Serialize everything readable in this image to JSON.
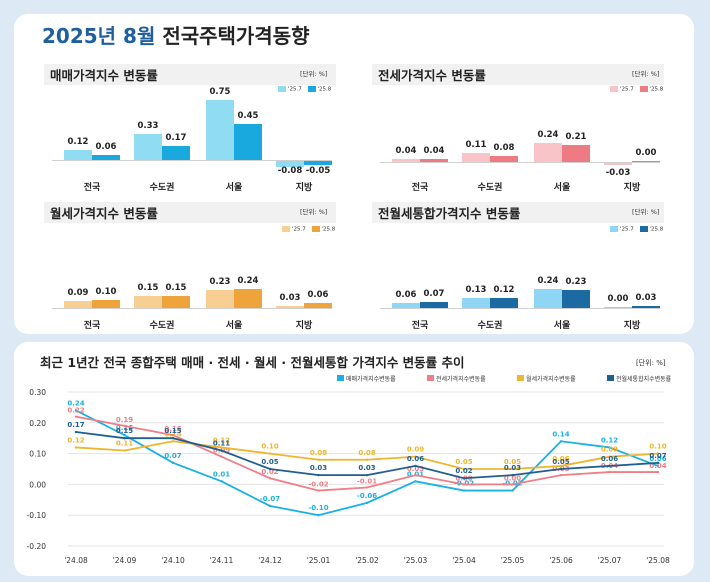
{
  "main_title": {
    "year_month": "2025년 8월",
    "rest": "전국주택가격동향"
  },
  "colors": {
    "sale": [
      "#8fdcf3",
      "#1aa9df"
    ],
    "jeonse": [
      "#f8c4c8",
      "#ee7a82"
    ],
    "monthly": [
      "#f8cf93",
      "#eea43a"
    ],
    "combined": [
      "#8fd6f5",
      "#1b6aa1"
    ],
    "line": [
      "#1ab0e5",
      "#ef7e86",
      "#efb52e",
      "#1f5f8f"
    ]
  },
  "chart_data": [
    {
      "type": "bar",
      "title": "매매가격지수 변동률",
      "unit": "[단위: %]",
      "legend": [
        "'25.7",
        "'25.8"
      ],
      "categories": [
        "전국",
        "수도권",
        "서울",
        "지방"
      ],
      "series": [
        {
          "name": "'25.7",
          "values": [
            0.12,
            0.33,
            0.75,
            -0.08
          ],
          "labels": [
            "0.12",
            "0.33",
            "0.75",
            "-0.08"
          ]
        },
        {
          "name": "'25.8",
          "values": [
            0.06,
            0.17,
            0.45,
            -0.05
          ],
          "labels": [
            "0.06",
            "0.17",
            "0.45",
            "-0.05"
          ]
        }
      ]
    },
    {
      "type": "bar",
      "title": "전세가격지수 변동률",
      "unit": "[단위: %]",
      "legend": [
        "'25.7",
        "'25.8"
      ],
      "categories": [
        "전국",
        "수도권",
        "서울",
        "지방"
      ],
      "series": [
        {
          "name": "'25.7",
          "values": [
            0.04,
            0.11,
            0.24,
            -0.03
          ],
          "labels": [
            "0.04",
            "0.11",
            "0.24",
            "-0.03"
          ]
        },
        {
          "name": "'25.8",
          "values": [
            0.04,
            0.08,
            0.21,
            0.0
          ],
          "labels": [
            "0.04",
            "0.08",
            "0.21",
            "0.00"
          ]
        }
      ]
    },
    {
      "type": "bar",
      "title": "월세가격지수 변동률",
      "unit": "[단위: %]",
      "legend": [
        "'25.7",
        "'25.8"
      ],
      "categories": [
        "전국",
        "수도권",
        "서울",
        "지방"
      ],
      "series": [
        {
          "name": "'25.7",
          "values": [
            0.09,
            0.15,
            0.23,
            0.03
          ],
          "labels": [
            "0.09",
            "0.15",
            "0.23",
            "0.03"
          ]
        },
        {
          "name": "'25.8",
          "values": [
            0.1,
            0.15,
            0.24,
            0.06
          ],
          "labels": [
            "0.10",
            "0.15",
            "0.24",
            "0.06"
          ]
        }
      ]
    },
    {
      "type": "bar",
      "title": "전월세통합가격지수 변동률",
      "unit": "[단위: %]",
      "legend": [
        "'25.7",
        "'25.8"
      ],
      "categories": [
        "전국",
        "수도권",
        "서울",
        "지방"
      ],
      "series": [
        {
          "name": "'25.7",
          "values": [
            0.06,
            0.13,
            0.24,
            0.0
          ],
          "labels": [
            "0.06",
            "0.13",
            "0.24",
            "0.00"
          ]
        },
        {
          "name": "'25.8",
          "values": [
            0.07,
            0.12,
            0.23,
            0.03
          ],
          "labels": [
            "0.07",
            "0.12",
            "0.23",
            "0.03"
          ]
        }
      ]
    },
    {
      "type": "line",
      "title": "최근 1년간 전국 종합주택 매매 · 전세 · 월세 · 전월세통합 가격지수 변동률 추이",
      "unit": "[단위: %]",
      "x": [
        "'24.08",
        "'24.09",
        "'24.10",
        "'24.11",
        "'24.12",
        "'25.01",
        "'25.02",
        "'25.03",
        "'25.04",
        "'25.05",
        "'25.06",
        "'25.07",
        "'25.08"
      ],
      "y_ticks": [
        "0.30",
        "0.20",
        "0.10",
        "0.00",
        "-0.10",
        "-0.20"
      ],
      "ylim": [
        -0.2,
        0.3
      ],
      "series": [
        {
          "name": "매매가격지수변동률",
          "values": [
            0.24,
            0.16,
            0.07,
            0.01,
            -0.07,
            -0.1,
            -0.06,
            0.01,
            -0.02,
            -0.02,
            0.14,
            0.12,
            0.06
          ],
          "labels": [
            "0.24",
            "0.16",
            "0.07",
            "0.01",
            "-0.07",
            "-0.10",
            "-0.06",
            "0.01",
            "-0.02",
            "-0.02",
            "0.14",
            "0.12",
            "0.06"
          ]
        },
        {
          "name": "전세가격지수변동률",
          "values": [
            0.22,
            0.19,
            0.16,
            0.09,
            0.02,
            -0.02,
            -0.01,
            0.03,
            0.0,
            0.0,
            0.03,
            0.04,
            0.04
          ],
          "labels": [
            "0.22",
            "0.19",
            "0.16",
            "0.09",
            "0.02",
            "-0.02",
            "-0.01",
            "0.03",
            "0.00",
            "0.00",
            "0.03",
            "0.04",
            "0.04"
          ]
        },
        {
          "name": "월세가격지수변동률",
          "values": [
            0.12,
            0.11,
            0.14,
            0.12,
            0.1,
            0.08,
            0.08,
            0.09,
            0.05,
            0.05,
            0.06,
            0.09,
            0.1
          ],
          "labels": [
            "0.12",
            "0.11",
            "0.14",
            "0.12",
            "0.10",
            "0.08",
            "0.08",
            "0.09",
            "0.05",
            "0.05",
            "0.06",
            "0.09",
            "0.10"
          ]
        },
        {
          "name": "전월세통합지수변동률",
          "values": [
            0.17,
            0.15,
            0.15,
            0.11,
            0.05,
            0.03,
            0.03,
            0.06,
            0.02,
            0.03,
            0.05,
            0.06,
            0.07
          ],
          "labels": [
            "0.17",
            "0.15",
            "0.15",
            "0.11",
            "0.05",
            "0.03",
            "0.03",
            "0.06",
            "0.02",
            "0.03",
            "0.05",
            "0.06",
            "0.07"
          ]
        }
      ]
    }
  ]
}
